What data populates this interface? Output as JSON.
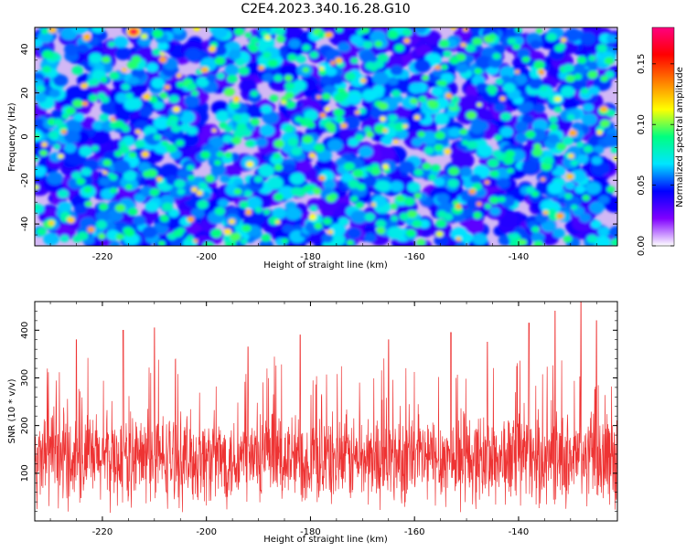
{
  "title": "C2E4.2023.340.16.28.G10",
  "chart_data": [
    {
      "type": "heatmap",
      "xlabel": "Height of straight line (km)",
      "ylabel": "Frequency (Hz)",
      "xlim": [
        -233,
        -121
      ],
      "ylim": [
        -50,
        50
      ],
      "xticks": [
        -220,
        -200,
        -180,
        -160,
        -140
      ],
      "yticks": [
        -40,
        -20,
        0,
        20,
        40
      ],
      "colorbar": {
        "label": "Normalized spectral amplitude",
        "range": [
          0,
          0.18
        ],
        "ticks": [
          0.0,
          0.05,
          0.1,
          0.15
        ],
        "tick_labels": [
          "0.00",
          "0.05",
          "0.10",
          "0.15"
        ],
        "colormap": [
          "#ffffff",
          "#8000ff",
          "#0000ff",
          "#00e5ff",
          "#00ff80",
          "#ffff00",
          "#ff8000",
          "#ff0000",
          "#ff0080"
        ]
      },
      "description_values": {
        "typical_amplitude": 0.03,
        "peak_amplitude": 0.17,
        "peak_location": {
          "x": -214,
          "y": 48
        }
      }
    },
    {
      "type": "line",
      "xlabel": "Height of straight line (km)",
      "ylabel": "SNR (10 * v/v)",
      "xlim": [
        -233,
        -121
      ],
      "ylim": [
        0,
        460
      ],
      "xticks": [
        -220,
        -200,
        -180,
        -160,
        -140
      ],
      "yticks": [
        100,
        200,
        300,
        400
      ],
      "series": [
        {
          "color": "#ee3333",
          "x_range": [
            -233,
            -121
          ],
          "baseline_mean": 130,
          "typical_range": [
            40,
            270
          ],
          "peaks": [
            {
              "x": -225,
              "y": 380
            },
            {
              "x": -216,
              "y": 400
            },
            {
              "x": -210,
              "y": 405
            },
            {
              "x": -192,
              "y": 365
            },
            {
              "x": -182,
              "y": 390
            },
            {
              "x": -165,
              "y": 380
            },
            {
              "x": -153,
              "y": 395
            },
            {
              "x": -146,
              "y": 375
            },
            {
              "x": -138,
              "y": 415
            },
            {
              "x": -133,
              "y": 440
            },
            {
              "x": -128,
              "y": 460
            },
            {
              "x": -125,
              "y": 420
            }
          ]
        }
      ]
    }
  ]
}
